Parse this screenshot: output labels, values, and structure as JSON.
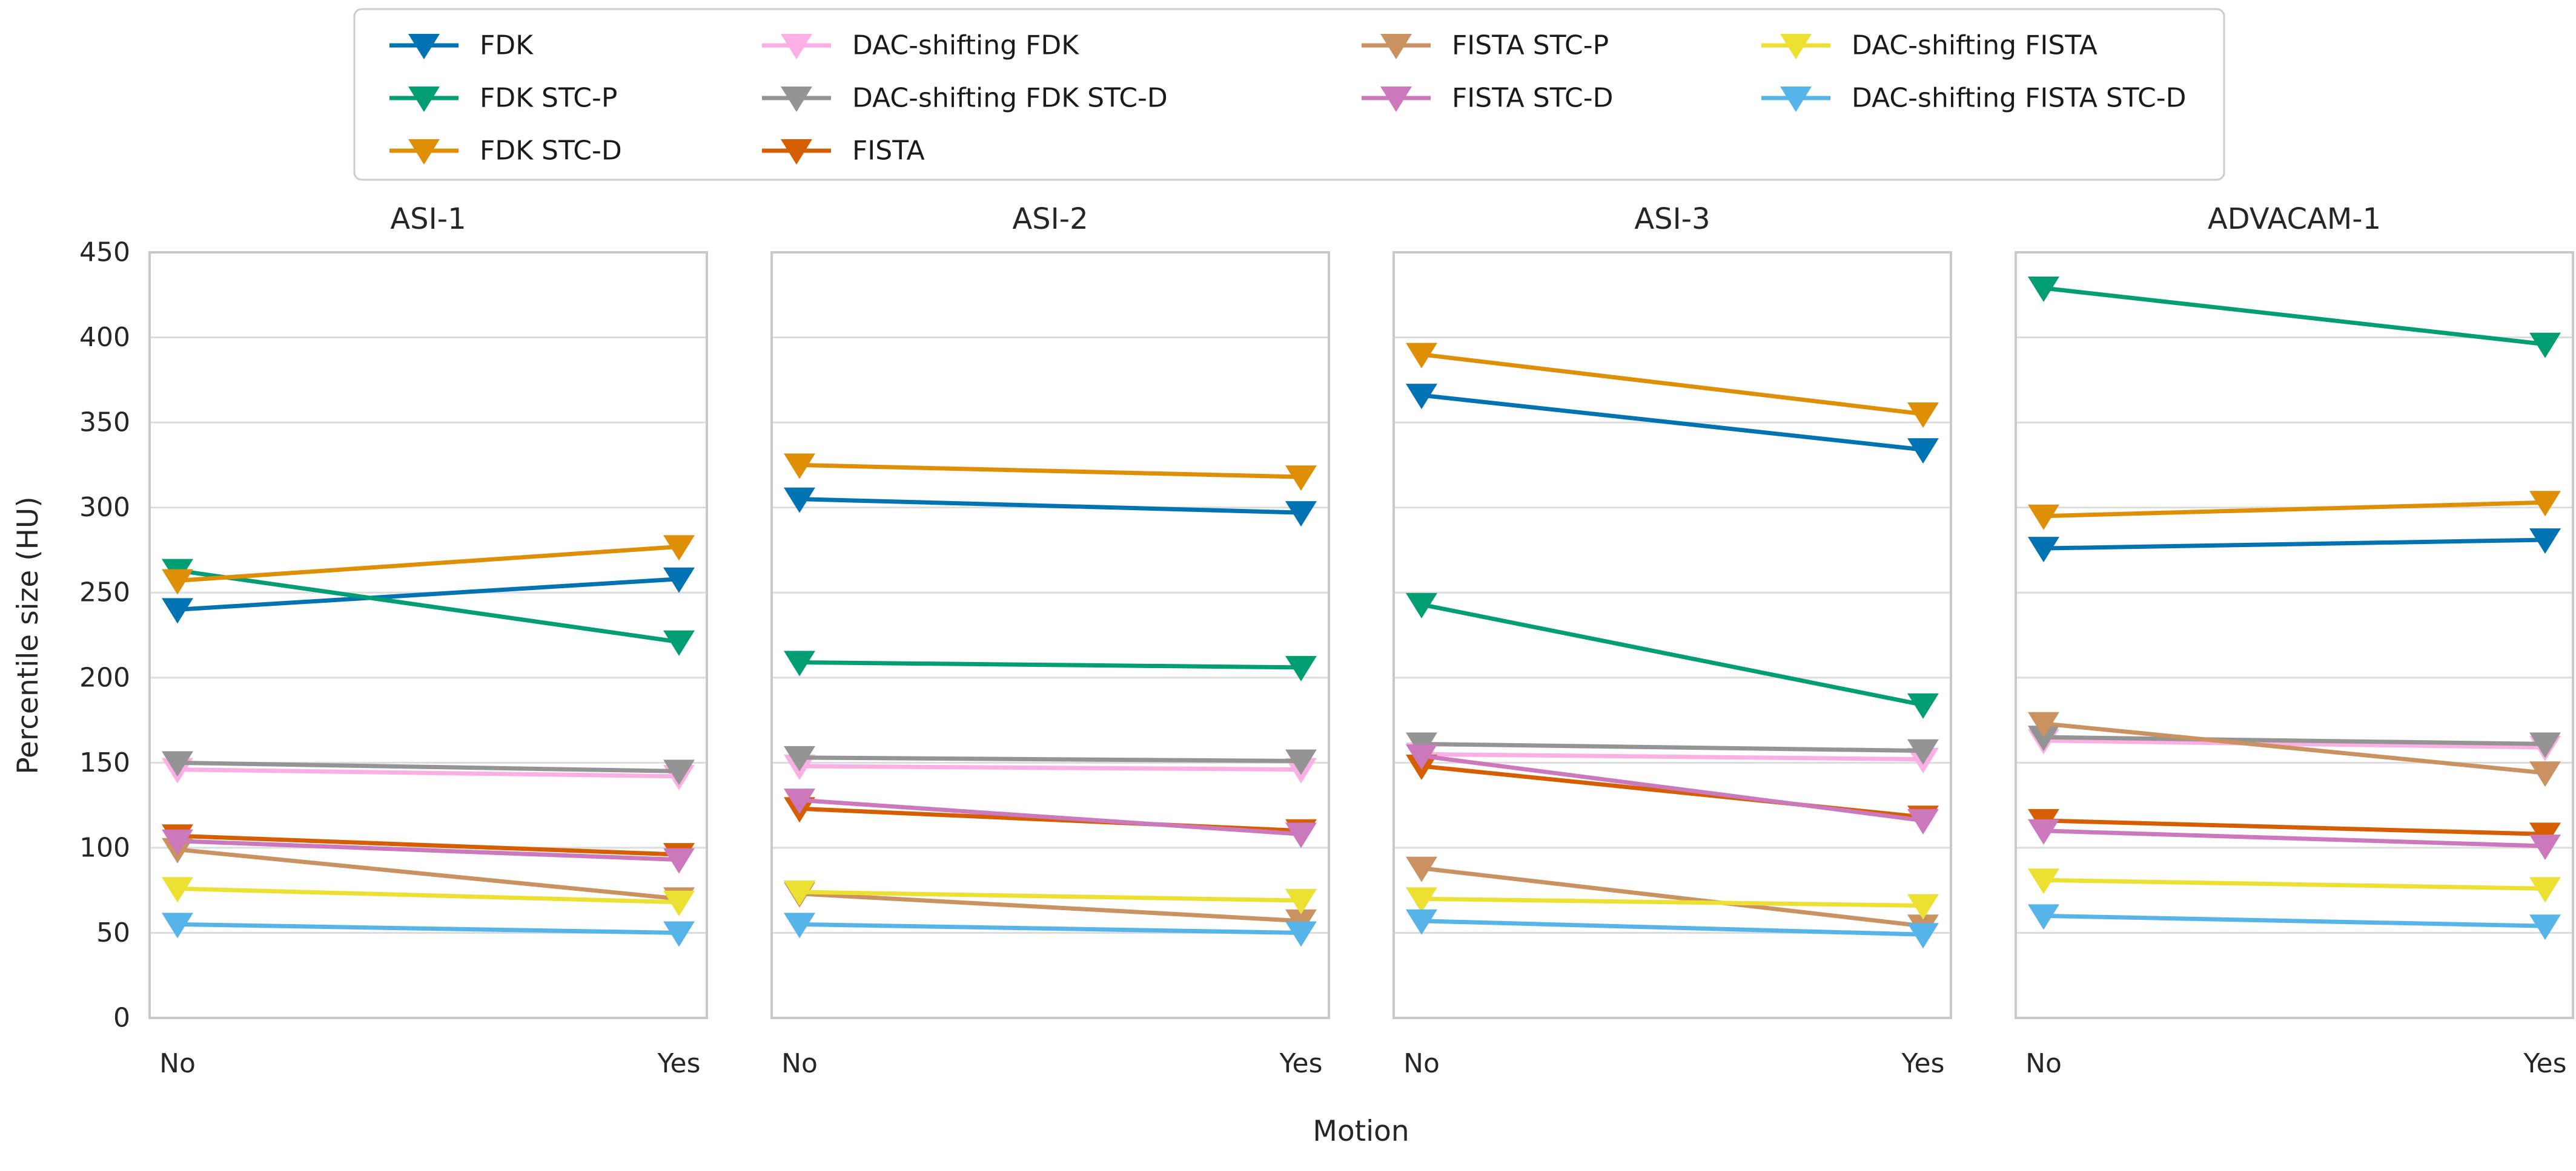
{
  "chart_data": {
    "type": "line",
    "panels": [
      "ASI-1",
      "ASI-2",
      "ASI-3",
      "ADVACAM-1"
    ],
    "x_categories": [
      "No",
      "Yes"
    ],
    "xlabel": "Motion",
    "ylabel": "Percentile size (HU)",
    "ylim": [
      0,
      450
    ],
    "ytick_step": 50,
    "yticks": [
      0,
      50,
      100,
      150,
      200,
      250,
      300,
      350,
      400,
      450
    ],
    "grid": "horizontal",
    "legend_position": "top",
    "marker": "triangle-down",
    "frame_color": "#c9c9c9",
    "grid_color": "#dcdcdc",
    "series": [
      {
        "name": "FDK",
        "color": "#0173b2",
        "values": [
          [
            240,
            258
          ],
          [
            305,
            297
          ],
          [
            366,
            334
          ],
          [
            276,
            281
          ]
        ]
      },
      {
        "name": "FDK STC-P",
        "color": "#029e73",
        "values": [
          [
            263,
            221
          ],
          [
            209,
            206
          ],
          [
            243,
            184
          ],
          [
            429,
            396
          ]
        ]
      },
      {
        "name": "FDK STC-D",
        "color": "#de8f05",
        "values": [
          [
            257,
            277
          ],
          [
            325,
            318
          ],
          [
            390,
            355
          ],
          [
            295,
            303
          ]
        ]
      },
      {
        "name": "DAC-shifting FDK",
        "color": "#fbafe4",
        "values": [
          [
            146,
            142
          ],
          [
            148,
            146
          ],
          [
            155,
            152
          ],
          [
            163,
            159
          ]
        ]
      },
      {
        "name": "DAC-shifting FDK STC-D",
        "color": "#949494",
        "values": [
          [
            150,
            145
          ],
          [
            153,
            151
          ],
          [
            161,
            157
          ],
          [
            165,
            161
          ]
        ]
      },
      {
        "name": "FISTA",
        "color": "#d55e00",
        "values": [
          [
            107,
            96
          ],
          [
            123,
            110
          ],
          [
            148,
            118
          ],
          [
            116,
            108
          ]
        ]
      },
      {
        "name": "FISTA STC-P",
        "color": "#ca9161",
        "values": [
          [
            99,
            70
          ],
          [
            73,
            57
          ],
          [
            88,
            54
          ],
          [
            173,
            144
          ]
        ]
      },
      {
        "name": "FISTA STC-D",
        "color": "#cc78bc",
        "values": [
          [
            104,
            93
          ],
          [
            128,
            108
          ],
          [
            154,
            116
          ],
          [
            110,
            101
          ]
        ]
      },
      {
        "name": "DAC-shifting FISTA",
        "color": "#ece133",
        "values": [
          [
            76,
            68
          ],
          [
            74,
            69
          ],
          [
            70,
            66
          ],
          [
            81,
            76
          ]
        ]
      },
      {
        "name": "DAC-shifting FISTA STC-D",
        "color": "#56b4e9",
        "values": [
          [
            55,
            50
          ],
          [
            55,
            50
          ],
          [
            57,
            49
          ],
          [
            60,
            54
          ]
        ]
      }
    ],
    "legend_columns": [
      [
        "FDK",
        "FDK STC-P",
        "FDK STC-D"
      ],
      [
        "DAC-shifting FDK",
        "DAC-shifting FDK STC-D",
        "FISTA"
      ],
      [
        "FISTA STC-P",
        "FISTA STC-D"
      ],
      [
        "DAC-shifting FISTA",
        "DAC-shifting FISTA STC-D"
      ]
    ]
  }
}
